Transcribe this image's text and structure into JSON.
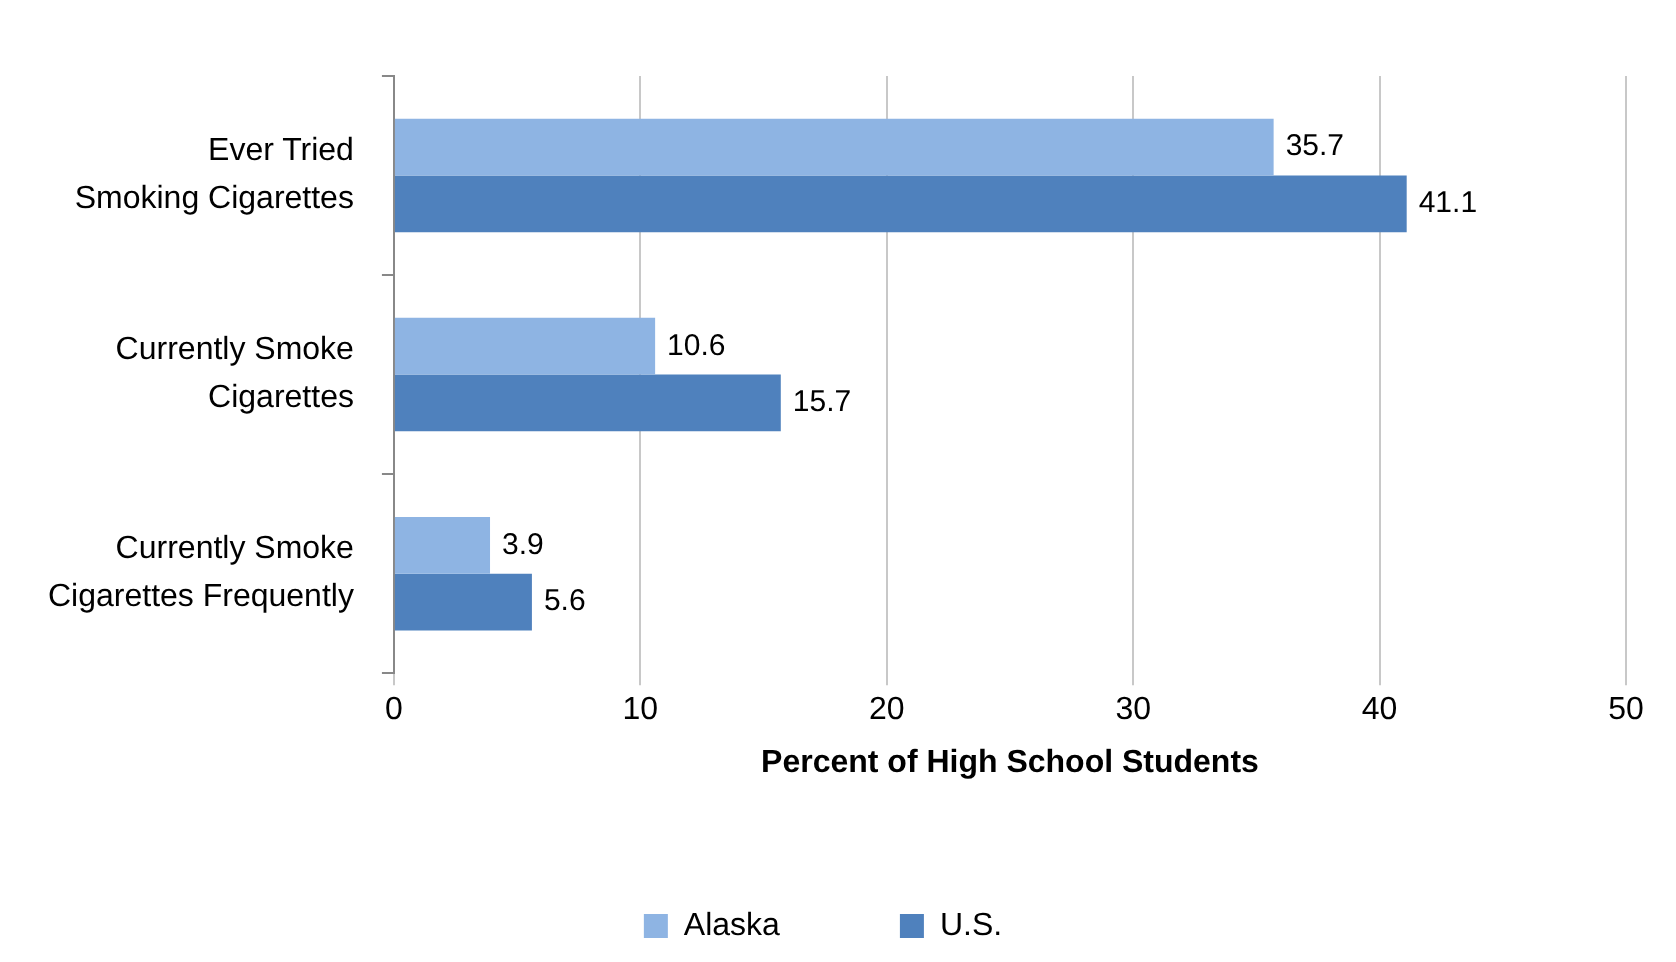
{
  "chart_data": {
    "type": "bar",
    "orientation": "horizontal",
    "xlabel": "Percent of High School Students",
    "categories": [
      "Ever Tried\nSmoking Cigarettes",
      "Currently Smoke\nCigarettes",
      "Currently Smoke\nCigarettes Frequently"
    ],
    "series": [
      {
        "name": "Alaska",
        "color": "#8eb4e3",
        "values": [
          35.7,
          10.6,
          3.9
        ]
      },
      {
        "name": "U.S.",
        "color": "#4f81bd",
        "values": [
          41.1,
          15.7,
          5.6
        ]
      }
    ],
    "xlim": [
      0,
      50
    ],
    "xticks": [
      0,
      10,
      20,
      30,
      40,
      50
    ],
    "grid": "x",
    "legend": "bottom",
    "data_labels": true
  }
}
